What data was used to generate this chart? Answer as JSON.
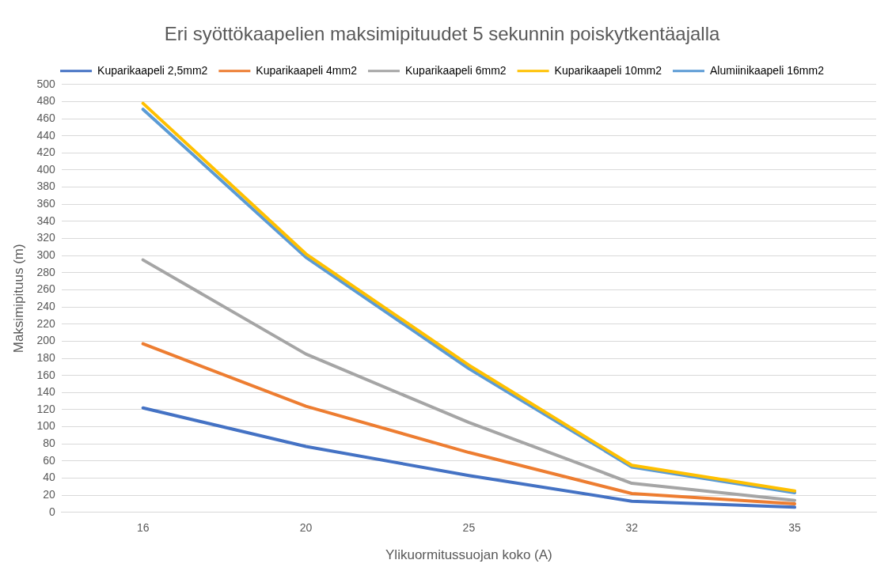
{
  "chart_data": {
    "type": "line",
    "title": "Eri syöttökaapelien maksimipituudet 5 sekunnin poiskytkentäajalla",
    "xlabel": "Ylikuormitussuojan koko (A)",
    "ylabel": "Maksimipituus (m)",
    "categories": [
      "16",
      "20",
      "25",
      "32",
      "35"
    ],
    "series": [
      {
        "name": "Kuparikaapeli 2,5mm2",
        "color": "#4472c4",
        "values": [
          122,
          77,
          43,
          13,
          6
        ]
      },
      {
        "name": "Kuparikaapeli 4mm2",
        "color": "#ed7d31",
        "values": [
          197,
          124,
          70,
          22,
          10
        ]
      },
      {
        "name": "Kuparikaapeli 6mm2",
        "color": "#a5a5a5",
        "values": [
          295,
          185,
          105,
          34,
          14
        ]
      },
      {
        "name": "Kuparikaapeli 10mm2",
        "color": "#ffc000",
        "values": [
          478,
          302,
          172,
          55,
          25
        ]
      },
      {
        "name": "Alumiinikaapeli 16mm2",
        "color": "#5b9bd5",
        "values": [
          471,
          298,
          168,
          53,
          23
        ]
      }
    ],
    "ylim": [
      0,
      500
    ],
    "yticks": [
      0,
      20,
      40,
      60,
      80,
      100,
      120,
      140,
      160,
      180,
      200,
      220,
      240,
      260,
      280,
      300,
      320,
      340,
      360,
      380,
      400,
      420,
      440,
      460,
      480,
      500
    ],
    "grid": "y",
    "legend": "top",
    "marker": "none",
    "line_style": "solid"
  }
}
